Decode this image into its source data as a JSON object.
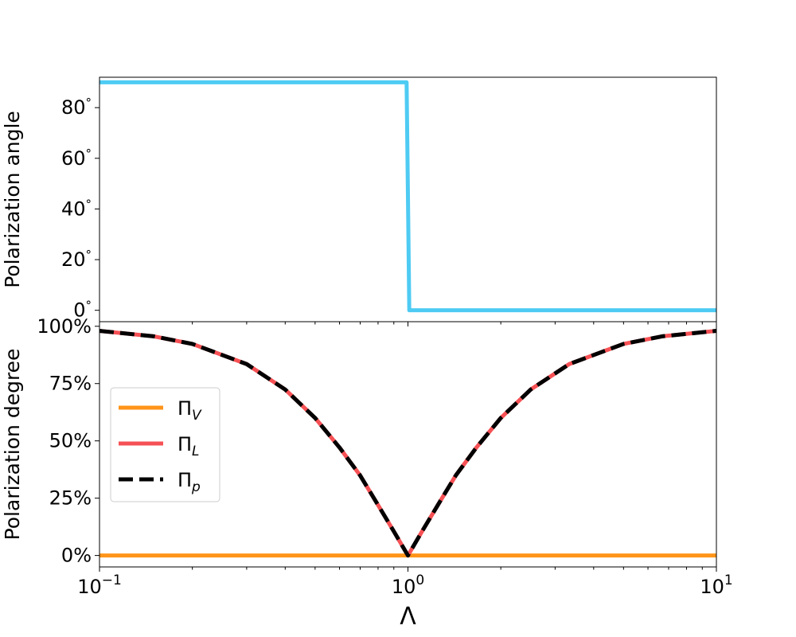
{
  "chart_data": [
    {
      "type": "line",
      "ylabel": "Polarization angle",
      "x_scale": "log",
      "xlim": [
        0.1,
        10
      ],
      "ylim": [
        -4.5,
        92
      ],
      "yticks": [
        0,
        20,
        40,
        60,
        80
      ],
      "ytick_labels": [
        "0$^\\circ$",
        "20$^\\circ$",
        "40$^\\circ$",
        "60$^\\circ$",
        "80$^\\circ$"
      ],
      "ytick_labels_display": [
        "0",
        "20",
        "40",
        "60",
        "80"
      ],
      "ytick_suffix": "°",
      "grid": false,
      "series": [
        {
          "color": "#4ecbf3",
          "style": "solid",
          "x": [
            0.1,
            0.99,
            1.0,
            1.01,
            10
          ],
          "y": [
            90,
            90,
            45,
            0,
            0
          ]
        }
      ]
    },
    {
      "type": "line",
      "ylabel": "Polarization degree",
      "xlabel": "Λ",
      "x_scale": "log",
      "xlim": [
        0.1,
        10
      ],
      "ylim": [
        -5,
        102
      ],
      "yticks": [
        0,
        25,
        50,
        75,
        100
      ],
      "ytick_labels": [
        "0%",
        "25%",
        "50%",
        "75%",
        "100%"
      ],
      "xticks": [
        0.1,
        1,
        10
      ],
      "xtick_labels": [
        {
          "base": "10",
          "exp": "−1"
        },
        {
          "base": "10",
          "exp": "0"
        },
        {
          "base": "10",
          "exp": "1"
        }
      ],
      "grid": false,
      "legend_position": "center-left",
      "legend": [
        {
          "base": "Π",
          "sub": "V",
          "color": "#ff9419",
          "style": "solid"
        },
        {
          "base": "Π",
          "sub": "L",
          "color": "#f65155",
          "style": "solid"
        },
        {
          "base": "Π",
          "sub": "p",
          "color": "#000000",
          "style": "dashed"
        }
      ],
      "series": [
        {
          "name": "Π_V",
          "color": "#ff9419",
          "style": "solid",
          "x": [
            0.1,
            10
          ],
          "y": [
            0,
            0
          ]
        },
        {
          "name": "Π_L",
          "color": "#f65155",
          "style": "solid",
          "x": [
            0.1,
            0.15,
            0.2,
            0.3,
            0.4,
            0.5,
            0.6,
            0.7,
            0.8,
            0.9,
            1.0,
            1.111,
            1.25,
            1.429,
            1.667,
            2,
            2.5,
            3.333,
            5,
            6.667,
            10
          ],
          "y": [
            98,
            95.6,
            92.3,
            83.5,
            72.4,
            60,
            47.1,
            34.9,
            22,
            10.5,
            0,
            10.5,
            22,
            34.9,
            47.1,
            60,
            72.4,
            83.5,
            92.3,
            95.6,
            98
          ]
        },
        {
          "name": "Π_p",
          "color": "#000000",
          "style": "dashed",
          "x": [
            0.1,
            0.15,
            0.2,
            0.3,
            0.4,
            0.5,
            0.6,
            0.7,
            0.8,
            0.9,
            1.0,
            1.111,
            1.25,
            1.429,
            1.667,
            2,
            2.5,
            3.333,
            5,
            6.667,
            10
          ],
          "y": [
            98,
            95.6,
            92.3,
            83.5,
            72.4,
            60,
            47.1,
            34.9,
            22,
            10.5,
            0,
            10.5,
            22,
            34.9,
            47.1,
            60,
            72.4,
            83.5,
            92.3,
            95.6,
            98
          ]
        }
      ]
    }
  ]
}
